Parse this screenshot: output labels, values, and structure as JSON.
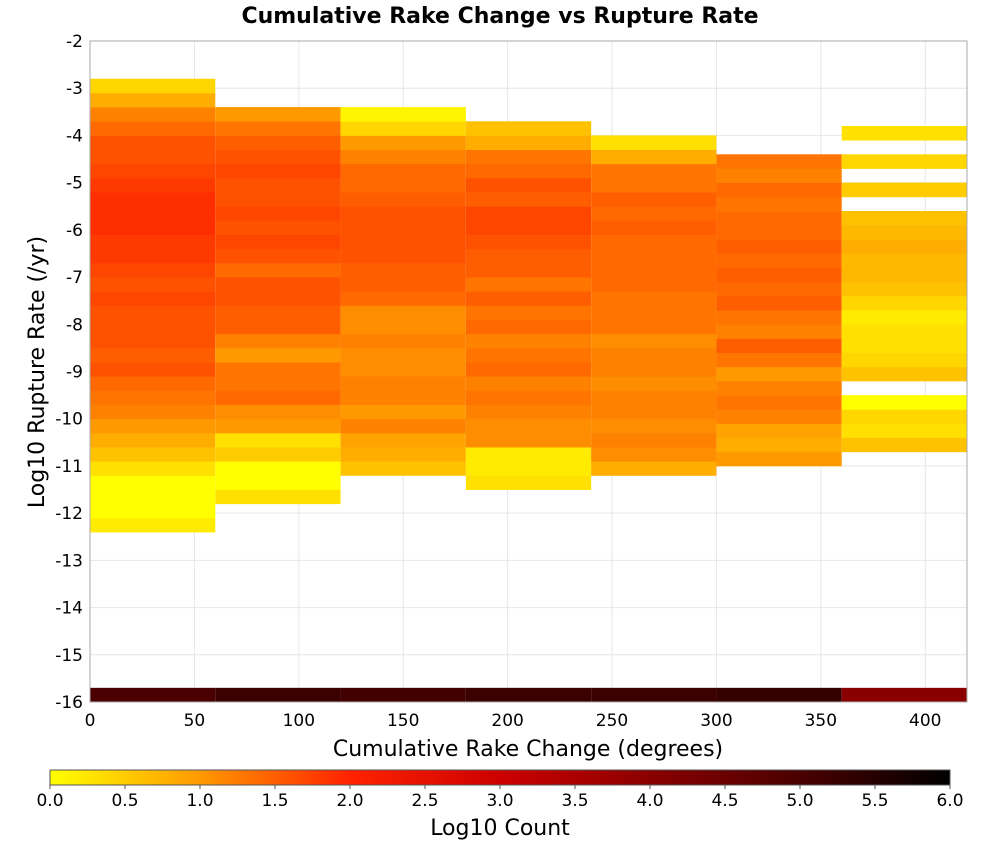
{
  "chart_data": {
    "type": "heatmap",
    "title": "Cumulative Rake Change vs Rupture Rate",
    "xlabel": "Cumulative Rake Change (degrees)",
    "ylabel": "Log10 Rupture Rate (/yr)",
    "xlim": [
      0,
      420
    ],
    "ylim": [
      -16,
      -2
    ],
    "x_ticks": [
      "0",
      "50",
      "100",
      "150",
      "200",
      "250",
      "300",
      "350",
      "400"
    ],
    "y_ticks": [
      "-2",
      "-3",
      "-4",
      "-5",
      "-6",
      "-7",
      "-8",
      "-9",
      "-10",
      "-11",
      "-12",
      "-13",
      "-14",
      "-15",
      "-16"
    ],
    "x_bin_width": 60,
    "y_bin_height": 0.3,
    "grid": true,
    "colorbar": {
      "label": "Log10 Count",
      "min": 0.0,
      "max": 6.0,
      "ticks": [
        "0.0",
        "0.5",
        "1.0",
        "1.5",
        "2.0",
        "2.5",
        "3.0",
        "3.5",
        "4.0",
        "4.5",
        "5.0",
        "5.5",
        "6.0"
      ],
      "colors": [
        "#ffff00",
        "#ff9900",
        "#ff2200",
        "#cc0000",
        "#8a0000",
        "#4a0000",
        "#000000"
      ]
    },
    "bins": [
      {
        "x0": 0,
        "y_bottom": -16.0,
        "log_counts": [
          5.0
        ]
      },
      {
        "x0": 0,
        "y_bottom": -12.4,
        "log_counts": [
          0.2,
          0.0,
          0.0,
          0.0,
          0.3,
          0.6,
          0.8,
          1.0,
          1.2,
          1.3,
          1.4,
          1.6,
          1.5,
          1.6,
          1.6,
          1.6,
          1.7,
          1.6,
          1.7,
          1.8,
          1.8,
          1.9,
          1.9,
          1.9,
          1.8,
          1.7,
          1.6,
          1.6,
          1.4,
          1.2,
          0.8,
          0.4
        ]
      },
      {
        "x0": 60,
        "y_bottom": -16.0,
        "log_counts": [
          5.2
        ]
      },
      {
        "x0": 60,
        "y_bottom": -11.8,
        "log_counts": [
          0.3,
          0.0,
          0.0,
          0.5,
          0.3,
          1.0,
          1.1,
          1.4,
          1.3,
          1.3,
          1.0,
          1.2,
          1.5,
          1.5,
          1.6,
          1.6,
          1.4,
          1.6,
          1.7,
          1.6,
          1.7,
          1.6,
          1.6,
          1.7,
          1.6,
          1.5,
          1.3,
          1.0
        ]
      },
      {
        "x0": 120,
        "y_bottom": -16.0,
        "log_counts": [
          5.1
        ]
      },
      {
        "x0": 120,
        "y_bottom": -11.2,
        "log_counts": [
          0.6,
          0.8,
          0.9,
          1.2,
          1.0,
          1.2,
          1.2,
          1.1,
          1.1,
          1.2,
          1.1,
          1.1,
          1.4,
          1.5,
          1.5,
          1.6,
          1.6,
          1.6,
          1.6,
          1.5,
          1.4,
          1.4,
          1.2,
          1.0,
          0.4,
          0.1
        ]
      },
      {
        "x0": 180,
        "y_bottom": -16.0,
        "log_counts": [
          5.2
        ]
      },
      {
        "x0": 180,
        "y_bottom": -11.5,
        "log_counts": [
          0.3,
          0.2,
          0.2,
          1.1,
          1.1,
          1.2,
          1.3,
          1.2,
          1.4,
          1.3,
          1.2,
          1.4,
          1.3,
          1.5,
          1.3,
          1.5,
          1.5,
          1.6,
          1.7,
          1.7,
          1.5,
          1.6,
          1.4,
          1.3,
          0.8,
          0.6
        ]
      },
      {
        "x0": 240,
        "y_bottom": -16.0,
        "log_counts": [
          5.2
        ]
      },
      {
        "x0": 240,
        "y_bottom": -11.2,
        "log_counts": [
          0.8,
          1.1,
          1.2,
          1.1,
          1.2,
          1.2,
          1.1,
          1.2,
          1.2,
          1.1,
          1.3,
          1.3,
          1.3,
          1.4,
          1.4,
          1.4,
          1.4,
          1.5,
          1.4,
          1.5,
          1.3,
          1.3,
          0.8,
          0.3
        ]
      },
      {
        "x0": 300,
        "y_bottom": -16.0,
        "log_counts": [
          5.3
        ]
      },
      {
        "x0": 300,
        "y_bottom": -11.0,
        "log_counts": [
          1.0,
          0.8,
          0.9,
          1.2,
          1.3,
          1.2,
          1.0,
          1.3,
          1.5,
          1.2,
          1.3,
          1.5,
          1.4,
          1.5,
          1.4,
          1.5,
          1.4,
          1.4,
          1.3,
          1.4,
          1.2,
          1.3
        ]
      },
      {
        "x0": 360,
        "y_bottom": -16.0,
        "log_counts": [
          4.0
        ]
      },
      {
        "x0": 360,
        "y_bottom": -10.7,
        "log_counts": [
          0.6,
          0.3,
          0.4,
          0.0,
          null,
          0.6,
          0.4,
          0.3,
          0.3,
          0.2,
          0.4,
          0.6,
          0.7,
          0.7,
          0.8,
          0.7,
          0.6,
          null,
          0.5,
          null,
          0.4,
          null,
          0.3
        ]
      }
    ]
  }
}
